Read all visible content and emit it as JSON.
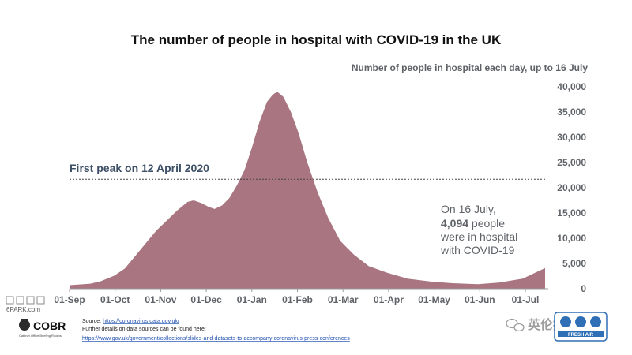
{
  "chart_data": {
    "type": "area",
    "title": "The number of people in hospital with COVID-19 in the UK",
    "subtitle": "Number of people in hospital each day, up to 16 July",
    "color": "#a87580",
    "x_ticks": [
      "01-Sep",
      "01-Oct",
      "01-Nov",
      "01-Dec",
      "01-Jan",
      "01-Feb",
      "01-Mar",
      "01-Apr",
      "01-May",
      "01-Jun",
      "01-Jul"
    ],
    "y_ticks": [
      "0",
      "5,000",
      "10,000",
      "15,000",
      "20,000",
      "25,000",
      "30,000",
      "35,000",
      "40,000"
    ],
    "ylim": [
      0,
      40000
    ],
    "x_range": [
      "2020-09-01",
      "2021-07-16"
    ],
    "y_axis_side": "right",
    "grid": false,
    "points": [
      [
        "2020-09-01",
        700
      ],
      [
        "2020-09-15",
        1000
      ],
      [
        "2020-09-22",
        1500
      ],
      [
        "2020-10-01",
        2600
      ],
      [
        "2020-10-08",
        4000
      ],
      [
        "2020-10-15",
        6500
      ],
      [
        "2020-10-22",
        9000
      ],
      [
        "2020-10-29",
        11500
      ],
      [
        "2020-11-05",
        13500
      ],
      [
        "2020-11-12",
        15500
      ],
      [
        "2020-11-19",
        17200
      ],
      [
        "2020-11-23",
        17500
      ],
      [
        "2020-11-28",
        17000
      ],
      [
        "2020-12-03",
        16200
      ],
      [
        "2020-12-07",
        15800
      ],
      [
        "2020-12-12",
        16500
      ],
      [
        "2020-12-17",
        18000
      ],
      [
        "2020-12-22",
        20500
      ],
      [
        "2020-12-27",
        23500
      ],
      [
        "2021-01-01",
        28000
      ],
      [
        "2021-01-06",
        33000
      ],
      [
        "2021-01-11",
        37000
      ],
      [
        "2021-01-15",
        38500
      ],
      [
        "2021-01-18",
        39000
      ],
      [
        "2021-01-22",
        38000
      ],
      [
        "2021-01-27",
        35000
      ],
      [
        "2021-02-01",
        31000
      ],
      [
        "2021-02-07",
        25000
      ],
      [
        "2021-02-14",
        19000
      ],
      [
        "2021-02-21",
        14000
      ],
      [
        "2021-03-01",
        9500
      ],
      [
        "2021-03-10",
        6800
      ],
      [
        "2021-03-20",
        4500
      ],
      [
        "2021-04-01",
        3200
      ],
      [
        "2021-04-15",
        2000
      ],
      [
        "2021-05-01",
        1400
      ],
      [
        "2021-05-15",
        1100
      ],
      [
        "2021-06-01",
        900
      ],
      [
        "2021-06-15",
        1200
      ],
      [
        "2021-07-01",
        2000
      ],
      [
        "2021-07-16",
        4094
      ]
    ],
    "reference_line": {
      "label": "First peak on 12 April 2020",
      "value": 21683,
      "style": "dotted"
    },
    "annotation": {
      "line1": "On 16 July,",
      "line2_bold": "4,094",
      "line2_rest": " people",
      "line3": "were in hospital",
      "line4": "with COVID-19"
    }
  },
  "source": {
    "line1_prefix": "Source: ",
    "line1_link": "https://coronavirus.data.gov.uk/",
    "line2": "Further details on data sources can be found here:",
    "line3_link": "https://www.gov.uk/government/collections/slides-and-datasets-to-accompany-coronavirus-press-conferences"
  },
  "logo": {
    "name": "COBR",
    "tagline": "Cabinet Office Briefing Rooms"
  },
  "watermark": {
    "site": "6PARK.com",
    "chinese_right": "英伦投资客",
    "badge_text": "FRESH AIR"
  }
}
